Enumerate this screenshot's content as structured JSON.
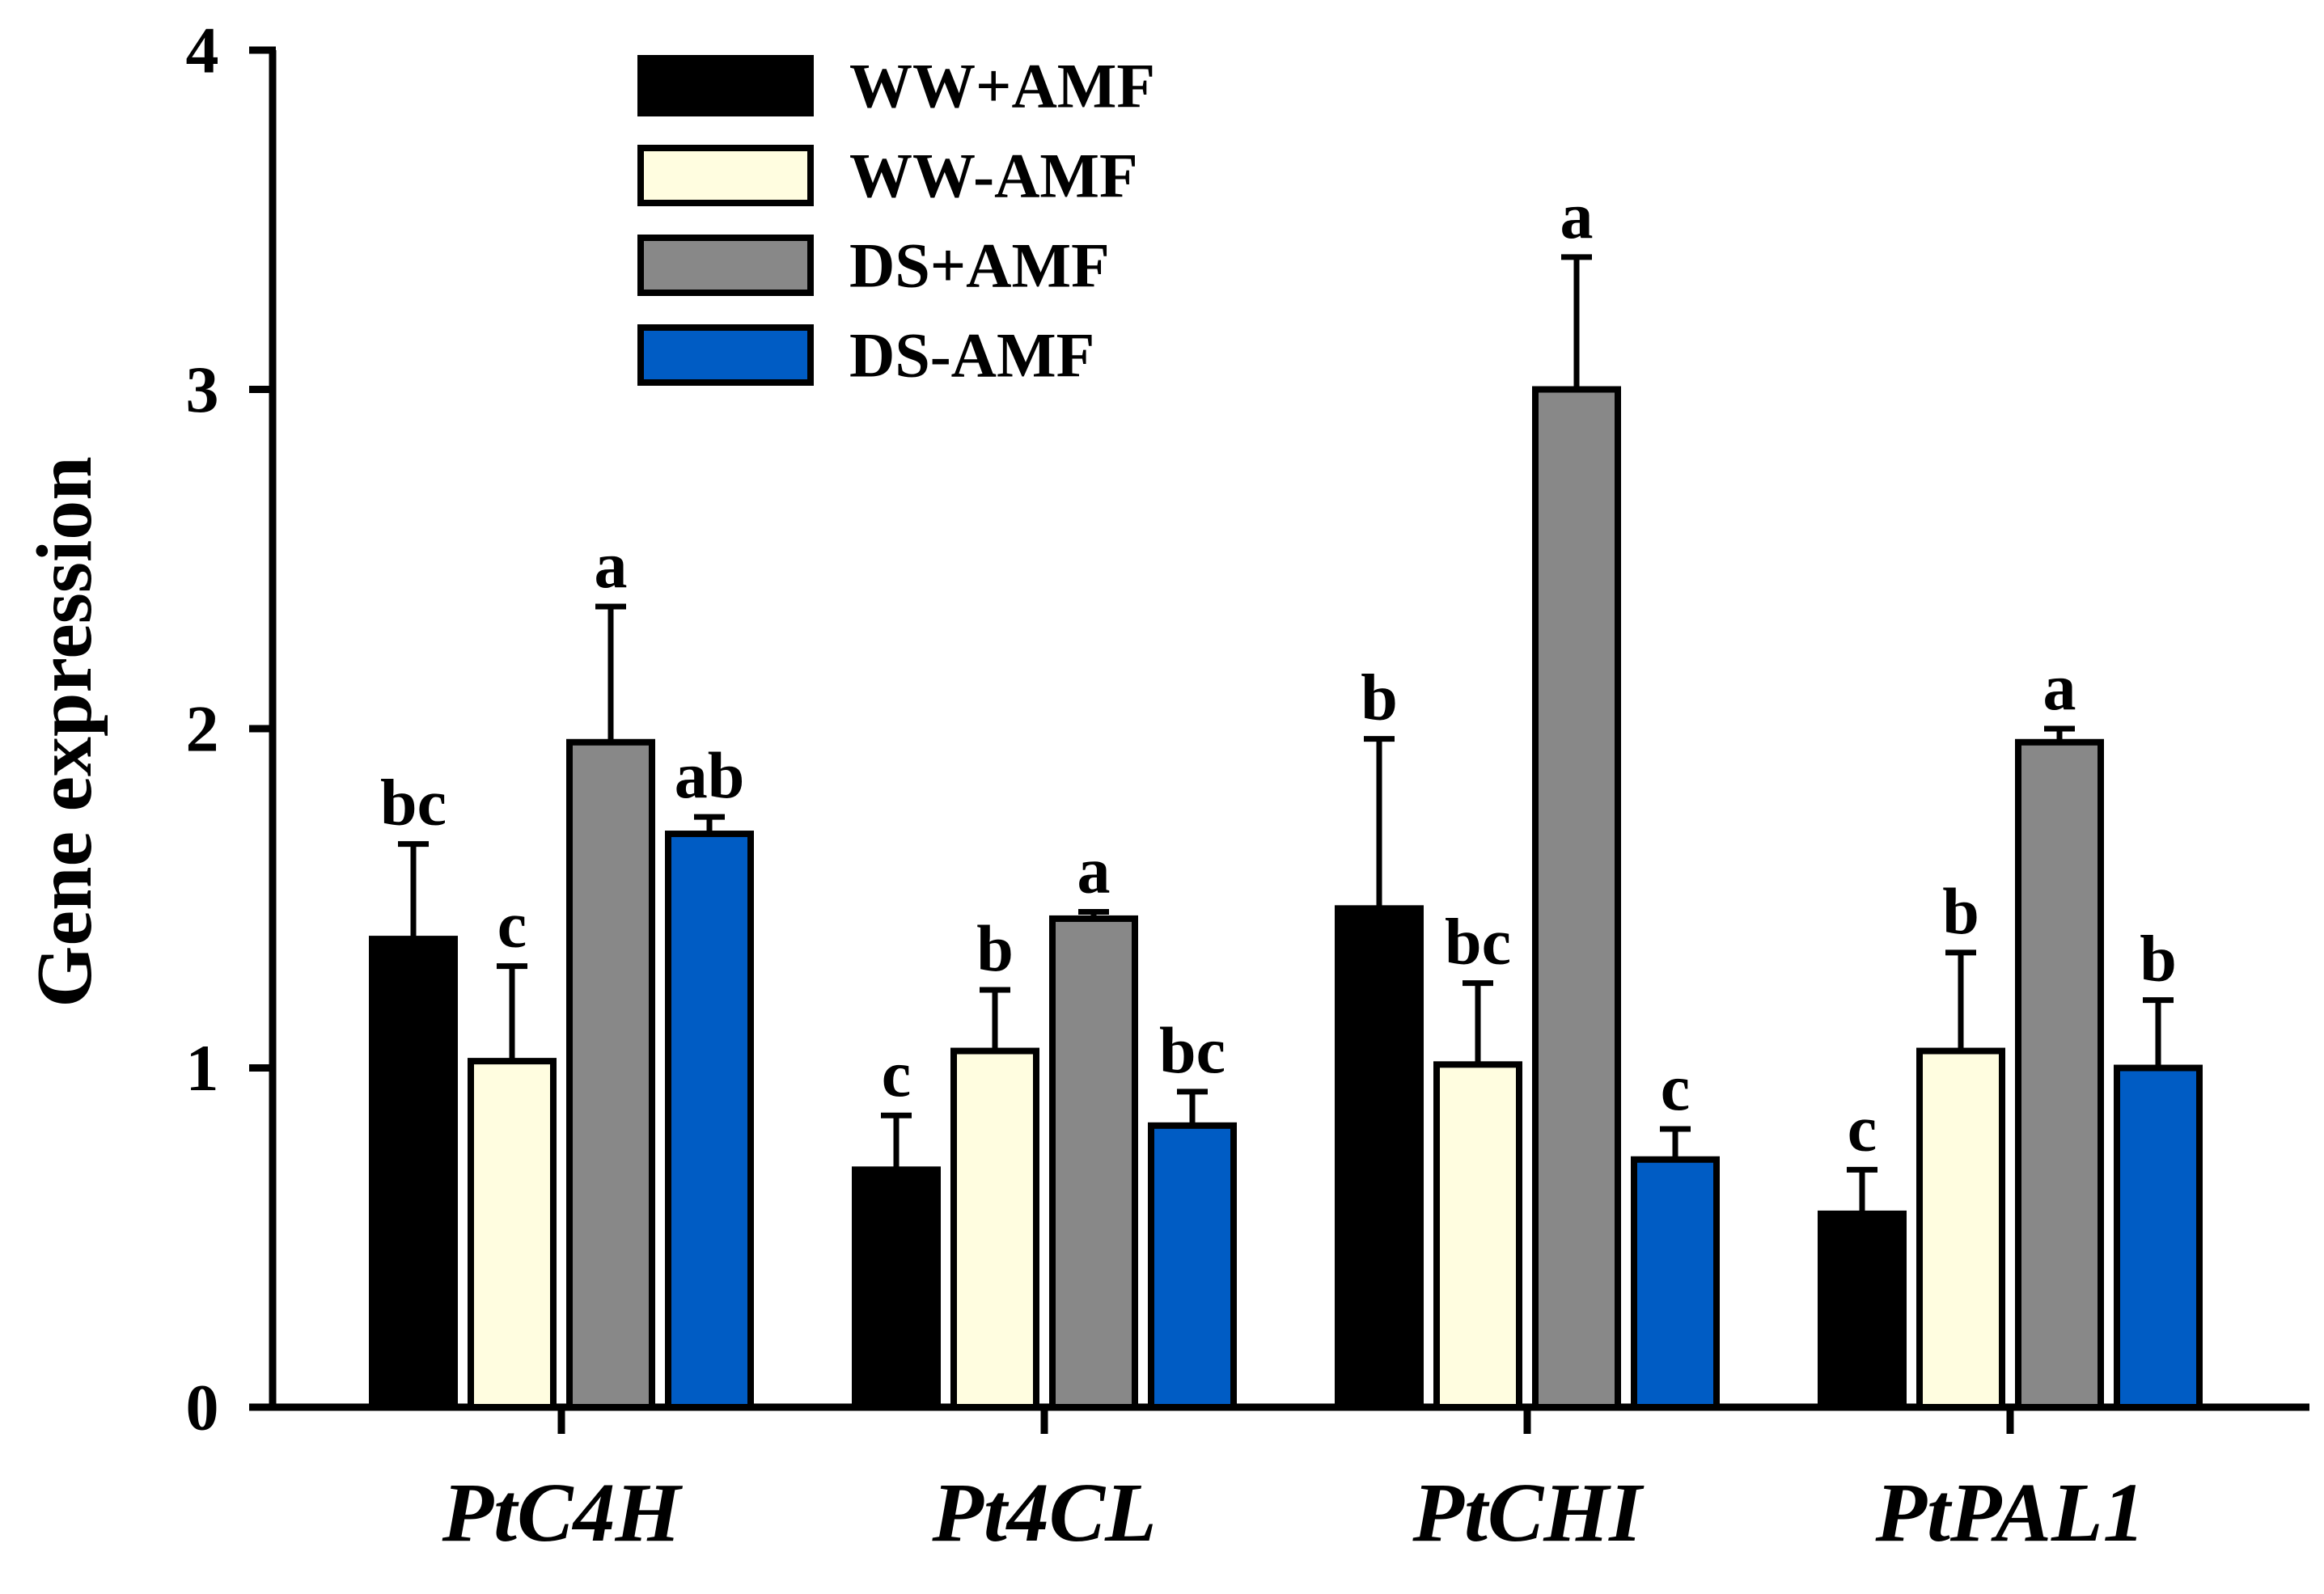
{
  "chart_data": {
    "type": "bar",
    "title": "",
    "xlabel": "",
    "ylabel": "Gene expression",
    "ylim": [
      0,
      4
    ],
    "yticks": [
      "0",
      "1",
      "2",
      "3",
      "4"
    ],
    "categories": [
      "PtC4H",
      "Pt4CL",
      "PtCHI",
      "PtPAL1"
    ],
    "legend_position": "top-center",
    "series": [
      {
        "name": "WW+AMF",
        "color": "#000000",
        "values": [
          1.38,
          0.7,
          1.47,
          0.57
        ],
        "errors": [
          0.28,
          0.16,
          0.5,
          0.13
        ],
        "letters": [
          "bc",
          "c",
          "b",
          "c"
        ]
      },
      {
        "name": "WW-AMF",
        "color": "#FFFDE0",
        "values": [
          1.02,
          1.05,
          1.01,
          1.05
        ],
        "errors": [
          0.28,
          0.18,
          0.24,
          0.29
        ],
        "letters": [
          "c",
          "b",
          "bc",
          "b"
        ]
      },
      {
        "name": "DS+AMF",
        "color": "#888888",
        "values": [
          1.96,
          1.44,
          3.0,
          1.96
        ],
        "errors": [
          0.4,
          0.02,
          0.39,
          0.04
        ],
        "letters": [
          "a",
          "a",
          "a",
          "a"
        ]
      },
      {
        "name": "DS-AMF",
        "color": "#005CC4",
        "values": [
          1.69,
          0.83,
          0.73,
          1.0
        ],
        "errors": [
          0.05,
          0.1,
          0.09,
          0.2
        ],
        "letters": [
          "ab",
          "bc",
          "c",
          "b"
        ]
      }
    ]
  }
}
